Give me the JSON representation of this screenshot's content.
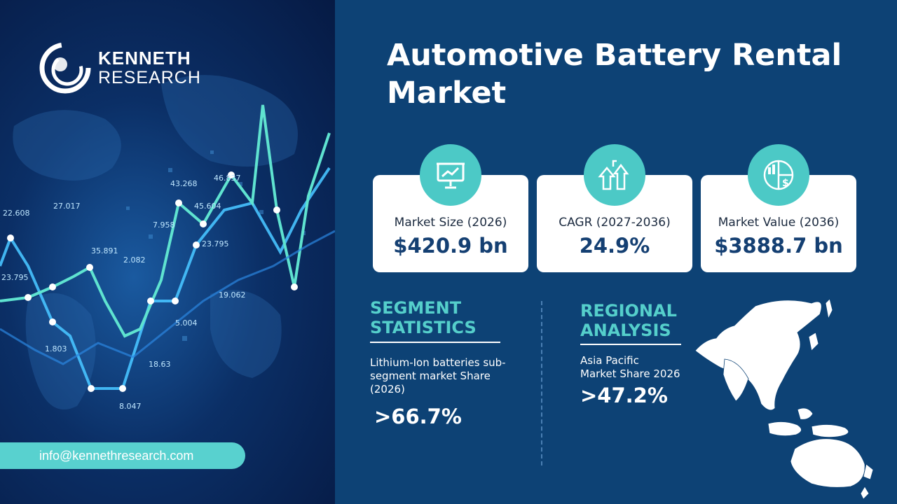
{
  "brand": {
    "line1": "KENNETH",
    "line2": "RESEARCH",
    "email": "info@kennethresearch.com"
  },
  "title": {
    "line1": "Automotive Battery Rental",
    "line2": "Market"
  },
  "cards": [
    {
      "label": "Market Size (2026)",
      "value": "$420.9 bn",
      "icon": "presentation-chart-icon"
    },
    {
      "label": "CAGR (2027-2036)",
      "value": "24.9%",
      "icon": "growth-arrows-icon"
    },
    {
      "label": "Market Value  (2036)",
      "value": "$3888.7 bn",
      "icon": "pie-dollar-icon"
    }
  ],
  "segment": {
    "heading_line1": "SEGMENT",
    "heading_line2": "STATISTICS",
    "text_line1": "Lithium-Ion batteries sub-",
    "text_line2": "segment market Share",
    "text_line3": "(2026)",
    "value": ">66.7%"
  },
  "regional": {
    "heading_line1": "REGIONAL",
    "heading_line2": "ANALYSIS",
    "text_line1": "Asia Pacific",
    "text_line2": "Market Share 2026",
    "value": ">47.2%"
  },
  "background_numbers": [
    "22.608",
    "27.017",
    "35.891",
    "23.795",
    "1.803",
    "2.082",
    "43.268",
    "46.837",
    "45.604",
    "23.795",
    "5.004",
    "18.63",
    "8.047",
    "19.062",
    "7.958"
  ],
  "colors": {
    "background": "#0d4275",
    "accent": "#4cc9c6",
    "card": "#ffffff",
    "value_text": "#143f72"
  }
}
